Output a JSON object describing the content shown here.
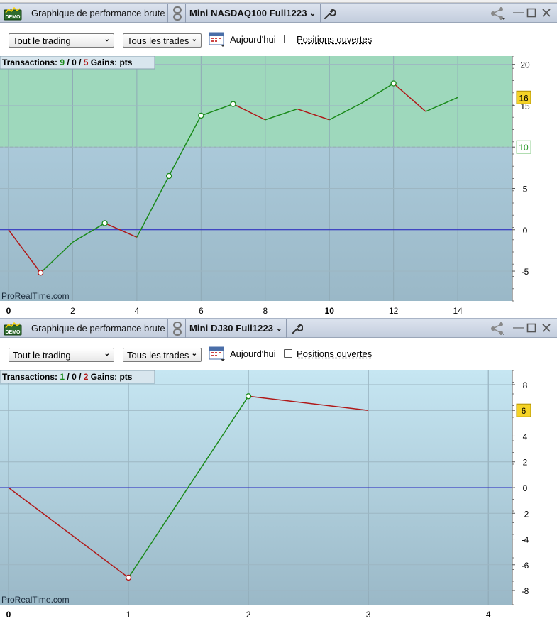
{
  "colors": {
    "gain_line": "#1a8a1a",
    "loss_line": "#b01818",
    "zero_line": "#2020c0",
    "gain_zone": "#9ed8bc",
    "chart_bg_top": "#b4d3e4",
    "chart_bg_bottom": "#9ab8c7",
    "badge_fill": "#f5d327",
    "target_text": "#2a9a2a"
  },
  "panels": [
    {
      "id": "top",
      "title": "Graphique de performance brute",
      "instrument": "Mini NASDAQ100 Full1223",
      "toolbar": {
        "scope": "Tout le trading",
        "trades": "Tous les trades",
        "today": "Aujourd'hui",
        "positions": "Positions ouvertes"
      },
      "info": {
        "label": "Transactions:",
        "wins": "9",
        "sep1": "/",
        "neutral": "0",
        "sep2": "/",
        "losses": "5",
        "gains": "Gains: pts"
      },
      "watermark": "ProRealTime.com",
      "last_value_badge": "16",
      "target_label": "10",
      "chart_data": {
        "type": "line",
        "x": [
          0,
          1,
          2,
          3,
          4,
          5,
          6,
          7,
          8,
          9,
          10,
          11,
          12,
          13,
          14
        ],
        "y": [
          0,
          -5.2,
          -1.5,
          0.8,
          -0.9,
          6.5,
          13.8,
          15.2,
          13.3,
          14.6,
          13.3,
          15.3,
          17.7,
          14.3,
          16
        ],
        "xlim": [
          0,
          15.7
        ],
        "ylim": [
          -8.6,
          21
        ],
        "x_ticks": [
          "0",
          "2",
          "4",
          "6",
          "8",
          "10",
          "12",
          "14"
        ],
        "y_ticks": [
          "20",
          "15",
          "10",
          "5",
          "0",
          "-5"
        ],
        "gain_zone_from": 10,
        "markers_gain": [
          3,
          5,
          6,
          7,
          12
        ],
        "markers_loss": [
          1
        ]
      }
    },
    {
      "id": "bottom",
      "title": "Graphique de performance brute",
      "instrument": "Mini DJ30 Full1223",
      "toolbar": {
        "scope": "Tout le trading",
        "trades": "Tous les trades",
        "today": "Aujourd'hui",
        "positions": "Positions ouvertes"
      },
      "info": {
        "label": "Transactions:",
        "wins": "1",
        "sep1": "/",
        "neutral": "0",
        "sep2": "/",
        "losses": "2",
        "gains": "Gains: pts"
      },
      "watermark": "ProRealTime.com",
      "last_value_badge": "6",
      "chart_data": {
        "type": "line",
        "x": [
          0,
          1,
          2,
          3
        ],
        "y": [
          0,
          -7,
          7.1,
          6
        ],
        "xlim": [
          0,
          4.2
        ],
        "ylim": [
          -9.1,
          9.1
        ],
        "x_ticks": [
          "0",
          "1",
          "2",
          "3",
          "4"
        ],
        "y_ticks": [
          "8",
          "6",
          "4",
          "2",
          "0",
          "-2",
          "-4",
          "-6",
          "-8"
        ],
        "markers_gain": [
          2
        ],
        "markers_loss": [
          1
        ]
      }
    }
  ]
}
